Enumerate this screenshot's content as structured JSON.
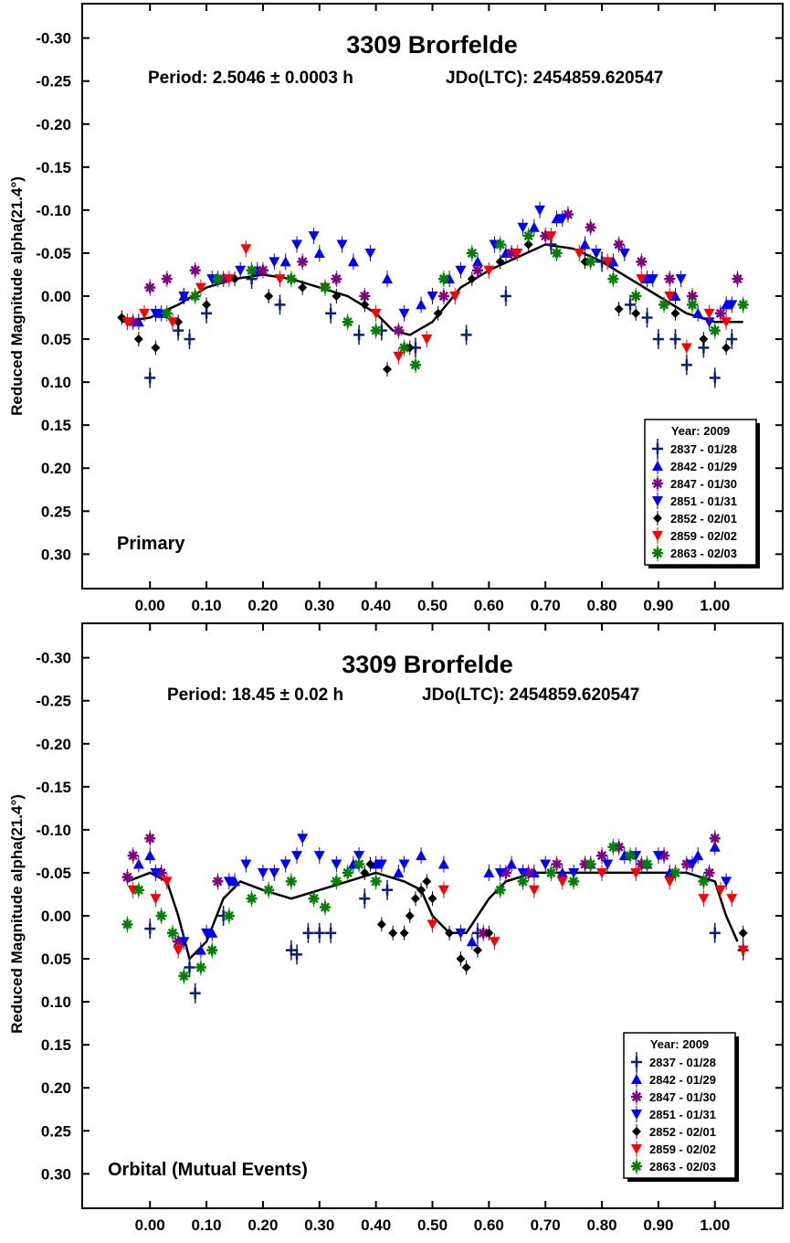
{
  "chart_data": [
    {
      "type": "scatter",
      "title": "3309 Brorfelde",
      "subtitle_period": "Period: 2.5046 ± 0.0003 h",
      "subtitle_epoch": "JDo(LTC): 2454859.620547",
      "ylabel": "Reduced Magnitude alpha(21.4°)",
      "xlabel": "",
      "panel_label": "Primary",
      "y_inverted": true,
      "xlim": [
        -0.12,
        1.12
      ],
      "ylim": [
        -0.34,
        0.34
      ],
      "x_ticks": [
        "0.00",
        "0.10",
        "0.20",
        "0.30",
        "0.40",
        "0.50",
        "0.60",
        "0.70",
        "0.80",
        "0.90",
        "1.00"
      ],
      "y_ticks": [
        "-0.30",
        "-0.25",
        "-0.20",
        "-0.15",
        "-0.10",
        "-0.05",
        "0.00",
        "0.05",
        "0.10",
        "0.15",
        "0.20",
        "0.25",
        "0.30"
      ],
      "legend_title": "Year: 2009",
      "legend_position": "bottom-right",
      "fit_curve": {
        "x": [
          -0.05,
          0.0,
          0.05,
          0.1,
          0.15,
          0.2,
          0.25,
          0.3,
          0.35,
          0.4,
          0.43,
          0.46,
          0.5,
          0.55,
          0.6,
          0.65,
          0.7,
          0.75,
          0.8,
          0.85,
          0.9,
          0.95,
          1.0,
          1.05
        ],
        "y": [
          0.03,
          0.025,
          0.01,
          -0.01,
          -0.02,
          -0.025,
          -0.02,
          -0.01,
          0.0,
          0.02,
          0.04,
          0.045,
          0.03,
          -0.01,
          -0.03,
          -0.045,
          -0.06,
          -0.055,
          -0.04,
          -0.02,
          0.0,
          0.02,
          0.03,
          0.03
        ]
      },
      "series": [
        {
          "name": "2837 - 01/28",
          "marker": "plus-errorbar",
          "color": "#0a1f7a",
          "x": [
            0.0,
            0.05,
            0.07,
            0.1,
            0.18,
            0.23,
            0.32,
            0.37,
            0.41,
            0.47,
            0.56,
            0.63,
            0.71,
            0.8,
            0.85,
            0.88,
            0.9,
            0.93,
            0.95,
            0.98,
            1.0,
            1.03
          ],
          "y": [
            0.095,
            0.04,
            0.05,
            0.02,
            -0.02,
            0.01,
            0.02,
            0.045,
            0.04,
            0.06,
            0.045,
            0.0,
            -0.06,
            -0.04,
            0.01,
            0.025,
            0.05,
            0.05,
            0.08,
            0.06,
            0.095,
            0.05
          ]
        },
        {
          "name": "2842 - 01/29",
          "marker": "triangle-up",
          "color": "#0000ff",
          "x": [
            -0.02,
            0.02,
            0.06,
            0.12,
            0.19,
            0.24,
            0.3,
            0.36,
            0.42,
            0.48,
            0.53,
            0.58,
            0.63,
            0.68,
            0.72,
            0.77,
            0.82,
            0.88,
            0.93,
            0.97,
            1.02
          ],
          "y": [
            0.03,
            0.02,
            0.0,
            -0.02,
            -0.03,
            -0.04,
            -0.05,
            -0.04,
            -0.02,
            0.01,
            -0.02,
            -0.04,
            -0.05,
            -0.08,
            -0.09,
            -0.06,
            -0.04,
            -0.02,
            0.0,
            0.02,
            0.01
          ]
        },
        {
          "name": "2847 - 01/30",
          "marker": "asterisk",
          "color": "#800080",
          "x": [
            -0.03,
            0.0,
            0.03,
            0.08,
            0.13,
            0.2,
            0.27,
            0.33,
            0.38,
            0.44,
            0.52,
            0.58,
            0.64,
            0.7,
            0.74,
            0.78,
            0.83,
            0.87,
            0.92,
            0.96,
            1.01,
            1.04
          ],
          "y": [
            0.03,
            -0.01,
            -0.02,
            -0.03,
            -0.02,
            -0.03,
            -0.04,
            -0.02,
            0.0,
            0.04,
            0.0,
            -0.03,
            -0.05,
            -0.07,
            -0.095,
            -0.08,
            -0.06,
            -0.04,
            -0.02,
            0.0,
            0.02,
            -0.02
          ]
        },
        {
          "name": "2851 - 01/31",
          "marker": "triangle-down",
          "color": "#0000ff",
          "x": [
            0.01,
            0.06,
            0.11,
            0.16,
            0.22,
            0.26,
            0.29,
            0.34,
            0.39,
            0.45,
            0.5,
            0.55,
            0.61,
            0.66,
            0.69,
            0.73,
            0.79,
            0.84,
            0.89,
            0.94,
            0.99,
            1.03
          ],
          "y": [
            0.02,
            0.0,
            -0.02,
            -0.03,
            -0.04,
            -0.06,
            -0.07,
            -0.06,
            -0.05,
            0.02,
            0.0,
            -0.03,
            -0.06,
            -0.08,
            -0.1,
            -0.09,
            -0.05,
            -0.05,
            -0.02,
            -0.02,
            0.03,
            0.01
          ]
        },
        {
          "name": "2852 - 02/01",
          "marker": "diamond",
          "color": "#000000",
          "x": [
            -0.05,
            -0.02,
            0.01,
            0.05,
            0.1,
            0.15,
            0.21,
            0.27,
            0.33,
            0.38,
            0.42,
            0.46,
            0.51,
            0.57,
            0.62,
            0.67,
            0.72,
            0.77,
            0.83,
            0.86,
            0.93,
            0.98,
            1.02
          ],
          "y": [
            0.025,
            0.05,
            0.06,
            0.03,
            0.01,
            -0.02,
            0.0,
            -0.01,
            0.0,
            0.01,
            0.085,
            0.06,
            0.02,
            -0.02,
            -0.04,
            -0.06,
            -0.05,
            -0.04,
            0.015,
            0.02,
            0.02,
            0.05,
            0.06
          ]
        },
        {
          "name": "2859 - 02/02",
          "marker": "triangle-down",
          "color": "#ff0000",
          "x": [
            -0.04,
            -0.01,
            0.04,
            0.09,
            0.14,
            0.17,
            0.23,
            0.31,
            0.4,
            0.44,
            0.49,
            0.54,
            0.6,
            0.65,
            0.71,
            0.76,
            0.81,
            0.87,
            0.92,
            0.95,
            0.99,
            1.02
          ],
          "y": [
            0.03,
            0.02,
            0.03,
            -0.01,
            -0.02,
            -0.055,
            -0.02,
            -0.01,
            0.02,
            0.07,
            0.05,
            0.0,
            -0.03,
            -0.05,
            -0.07,
            -0.05,
            -0.04,
            -0.02,
            0.0,
            0.06,
            0.02,
            0.03
          ]
        },
        {
          "name": "2863 - 02/03",
          "marker": "asterisk",
          "color": "#008000",
          "x": [
            0.03,
            0.08,
            0.12,
            0.18,
            0.25,
            0.31,
            0.35,
            0.4,
            0.45,
            0.47,
            0.52,
            0.57,
            0.62,
            0.67,
            0.72,
            0.78,
            0.82,
            0.86,
            0.91,
            0.96,
            1.0,
            1.05
          ],
          "y": [
            0.02,
            0.0,
            -0.02,
            -0.03,
            -0.02,
            -0.01,
            0.03,
            0.04,
            0.06,
            0.08,
            -0.02,
            -0.05,
            -0.06,
            -0.07,
            -0.05,
            -0.04,
            -0.02,
            0.0,
            0.01,
            0.01,
            0.04,
            0.01
          ]
        }
      ]
    },
    {
      "type": "scatter",
      "title": "3309 Brorfelde",
      "subtitle_period": "Period: 18.45 ± 0.02 h",
      "subtitle_epoch": "JDo(LTC): 2454859.620547",
      "ylabel": "Reduced Magnitude alpha(21.4°)",
      "xlabel": "",
      "panel_label": "Orbital (Mutual Events)",
      "y_inverted": true,
      "xlim": [
        -0.12,
        1.12
      ],
      "ylim": [
        -0.34,
        0.34
      ],
      "x_ticks": [
        "0.00",
        "0.10",
        "0.20",
        "0.30",
        "0.40",
        "0.50",
        "0.60",
        "0.70",
        "0.80",
        "0.90",
        "1.00"
      ],
      "y_ticks": [
        "-0.30",
        "-0.25",
        "-0.20",
        "-0.15",
        "-0.10",
        "-0.05",
        "0.00",
        "0.05",
        "0.10",
        "0.15",
        "0.20",
        "0.25",
        "0.30"
      ],
      "legend_title": "Year: 2009",
      "legend_position": "bottom-right",
      "fit_curve": {
        "x": [
          -0.04,
          0.0,
          0.03,
          0.05,
          0.07,
          0.1,
          0.13,
          0.16,
          0.2,
          0.25,
          0.3,
          0.35,
          0.4,
          0.45,
          0.48,
          0.5,
          0.53,
          0.56,
          0.58,
          0.6,
          0.63,
          0.68,
          0.75,
          0.85,
          0.95,
          1.0,
          1.02,
          1.04
        ],
        "y": [
          -0.04,
          -0.05,
          -0.04,
          0.0,
          0.05,
          0.03,
          -0.02,
          -0.04,
          -0.03,
          -0.02,
          -0.03,
          -0.04,
          -0.05,
          -0.04,
          -0.03,
          0.0,
          0.02,
          0.02,
          0.0,
          -0.02,
          -0.04,
          -0.05,
          -0.05,
          -0.05,
          -0.05,
          -0.04,
          0.0,
          0.03
        ]
      },
      "series": [
        {
          "name": "2837 - 01/28",
          "marker": "plus-errorbar",
          "color": "#0a1f7a",
          "x": [
            0.0,
            0.07,
            0.08,
            0.13,
            0.25,
            0.26,
            0.28,
            0.3,
            0.32,
            0.38,
            0.42,
            0.58,
            1.0,
            1.05
          ],
          "y": [
            0.015,
            0.06,
            0.09,
            0.0,
            0.04,
            0.045,
            0.02,
            0.02,
            0.02,
            -0.02,
            -0.03,
            0.02,
            0.02,
            0.04
          ]
        },
        {
          "name": "2842 - 01/29",
          "marker": "triangle-up",
          "color": "#0000ff",
          "x": [
            -0.02,
            0.0,
            0.09,
            0.11,
            0.15,
            0.36,
            0.4,
            0.44,
            0.48,
            0.52,
            0.57,
            0.6,
            0.64,
            0.68,
            0.73,
            0.78,
            0.84,
            0.88,
            0.92,
            0.97,
            1.0
          ],
          "y": [
            -0.06,
            -0.07,
            0.04,
            0.02,
            -0.04,
            -0.06,
            -0.06,
            -0.05,
            -0.07,
            -0.06,
            0.03,
            -0.05,
            -0.06,
            -0.05,
            -0.05,
            -0.06,
            -0.07,
            -0.06,
            -0.05,
            -0.07,
            -0.08
          ]
        },
        {
          "name": "2847 - 01/30",
          "marker": "asterisk",
          "color": "#800080",
          "x": [
            -0.04,
            -0.03,
            0.0,
            0.02,
            0.05,
            0.12,
            0.59,
            0.63,
            0.67,
            0.72,
            0.77,
            0.8,
            0.83,
            0.87,
            0.91,
            0.95,
            0.99,
            1.0
          ],
          "y": [
            -0.045,
            -0.07,
            -0.09,
            -0.05,
            0.03,
            -0.04,
            0.02,
            -0.05,
            -0.05,
            -0.06,
            -0.06,
            -0.07,
            -0.08,
            -0.06,
            -0.07,
            -0.06,
            -0.05,
            -0.09
          ]
        },
        {
          "name": "2851 - 01/31",
          "marker": "triangle-down",
          "color": "#0000ff",
          "x": [
            0.01,
            0.06,
            0.1,
            0.14,
            0.17,
            0.2,
            0.22,
            0.24,
            0.26,
            0.27,
            0.3,
            0.33,
            0.37,
            0.41,
            0.45,
            0.55,
            0.62,
            0.66,
            0.7,
            0.75,
            0.81,
            0.86,
            0.9,
            0.96,
            1.02
          ],
          "y": [
            -0.05,
            0.03,
            0.02,
            -0.04,
            -0.06,
            -0.05,
            -0.05,
            -0.06,
            -0.07,
            -0.09,
            -0.07,
            -0.06,
            -0.07,
            -0.06,
            -0.06,
            0.02,
            -0.05,
            -0.05,
            -0.06,
            -0.05,
            -0.06,
            -0.07,
            -0.07,
            -0.06,
            -0.04
          ]
        },
        {
          "name": "2852 - 02/01",
          "marker": "diamond",
          "color": "#000000",
          "x": [
            0.38,
            0.39,
            0.41,
            0.43,
            0.45,
            0.46,
            0.47,
            0.48,
            0.49,
            0.5,
            0.53,
            0.55,
            0.56,
            0.58,
            0.6,
            1.05
          ],
          "y": [
            -0.05,
            -0.06,
            0.01,
            0.02,
            0.02,
            0.0,
            -0.02,
            -0.03,
            -0.04,
            -0.02,
            0.02,
            0.05,
            0.06,
            0.04,
            0.02,
            0.02
          ]
        },
        {
          "name": "2859 - 02/02",
          "marker": "triangle-down",
          "color": "#ff0000",
          "x": [
            -0.03,
            0.01,
            0.03,
            0.05,
            0.5,
            0.52,
            0.61,
            0.68,
            0.73,
            0.8,
            0.86,
            0.92,
            0.98,
            1.01,
            1.03,
            1.05
          ],
          "y": [
            -0.03,
            -0.02,
            -0.04,
            0.04,
            0.01,
            -0.03,
            0.03,
            -0.03,
            -0.04,
            -0.05,
            -0.05,
            -0.04,
            -0.02,
            -0.03,
            -0.02,
            0.04
          ]
        },
        {
          "name": "2863 - 02/03",
          "marker": "asterisk",
          "color": "#008000",
          "x": [
            -0.04,
            -0.02,
            0.02,
            0.04,
            0.06,
            0.09,
            0.11,
            0.14,
            0.18,
            0.21,
            0.25,
            0.29,
            0.31,
            0.33,
            0.35,
            0.37,
            0.4,
            0.62,
            0.66,
            0.71,
            0.75,
            0.78,
            0.82,
            0.85,
            0.88,
            0.93,
            0.98
          ],
          "y": [
            0.01,
            -0.03,
            0.0,
            0.02,
            0.07,
            0.06,
            0.04,
            0.0,
            -0.02,
            -0.03,
            -0.04,
            -0.02,
            -0.01,
            -0.04,
            -0.05,
            -0.06,
            -0.04,
            -0.03,
            -0.04,
            -0.05,
            -0.04,
            -0.06,
            -0.08,
            -0.07,
            -0.06,
            -0.05,
            -0.04
          ]
        }
      ]
    }
  ]
}
